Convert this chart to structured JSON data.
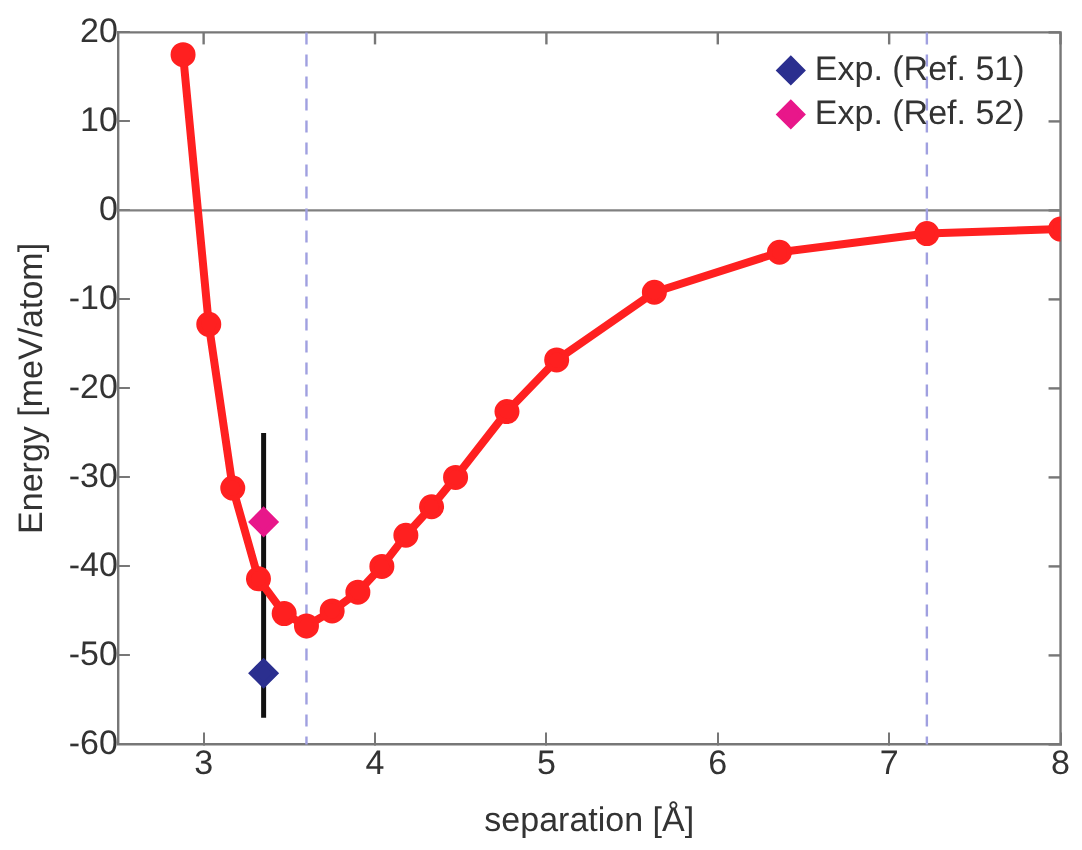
{
  "chart_data": {
    "type": "line",
    "xlabel": "separation [Å]",
    "ylabel": "Energy [meV/atom]",
    "xlim": [
      2.5,
      8
    ],
    "xticks": [
      3,
      4,
      5,
      6,
      7,
      8
    ],
    "ylim": [
      -60,
      20
    ],
    "yticks": [
      -60,
      -50,
      -40,
      -30,
      -20,
      -10,
      0,
      10,
      20
    ],
    "grid": false,
    "legend": "top right",
    "series": [
      {
        "color": "#ff2020",
        "marker": "circle",
        "line_style": "solid",
        "x": [
          2.88,
          3.03,
          3.17,
          3.32,
          3.47,
          3.6,
          3.75,
          3.9,
          4.04,
          4.18,
          4.33,
          4.47,
          4.77,
          5.06,
          5.63,
          6.36,
          7.22,
          8.0
        ],
        "values": [
          17.5,
          -12.8,
          -31.2,
          -41.4,
          -45.3,
          -46.7,
          -45.0,
          -42.9,
          -40.0,
          -36.5,
          -33.3,
          -30.0,
          -22.6,
          -16.8,
          -9.2,
          -4.7,
          -2.6,
          -2.1
        ]
      },
      {
        "type": "scatter",
        "name": "Exp. (Ref. 51)",
        "color": "#2b2f8f",
        "marker": "diamond",
        "x": [
          3.35
        ],
        "values": [
          -52
        ],
        "errors": [
          [
            -57,
            -25
          ]
        ]
      },
      {
        "type": "scatter",
        "name": "Exp. (Ref. 52)",
        "color": "#e8178a",
        "marker": "diamond",
        "x": [
          3.35
        ],
        "values": [
          -35
        ]
      }
    ],
    "ref_lines": [
      {
        "axis": "y",
        "value": 0,
        "color": "#808080",
        "line_style": "solid"
      },
      {
        "axis": "x",
        "value": 3.6,
        "color": "#a0a0e0",
        "line_style": "dashed"
      },
      {
        "axis": "x",
        "value": 7.22,
        "color": "#a0a0e0",
        "line_style": "dashed"
      }
    ]
  }
}
